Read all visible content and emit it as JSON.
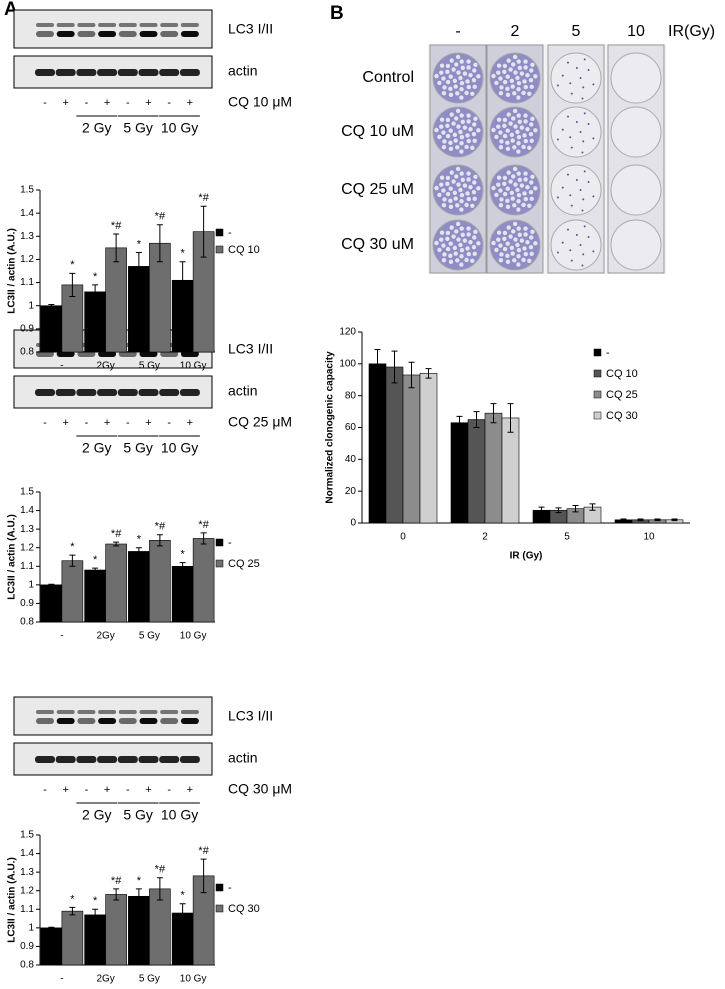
{
  "panel_labels": [
    "A",
    "B"
  ],
  "blots": [
    {
      "bands": [
        "LC3 I/II",
        "actin"
      ],
      "treatment": "CQ 10 μM",
      "lanes": [
        "-",
        "+",
        "-",
        "+",
        "-",
        "+",
        "-",
        "+"
      ],
      "groups": [
        "2 Gy",
        "5 Gy",
        "10 Gy"
      ]
    },
    {
      "bands": [
        "LC3 I/II",
        "actin"
      ],
      "treatment": "CQ 25 μM",
      "lanes": [
        "-",
        "+",
        "-",
        "+",
        "-",
        "+",
        "-",
        "+"
      ],
      "groups": [
        "2 Gy",
        "5 Gy",
        "10 Gy"
      ]
    },
    {
      "bands": [
        "LC3 I/II",
        "actin"
      ],
      "treatment": "CQ 30 μM",
      "lanes": [
        "-",
        "+",
        "-",
        "+",
        "-",
        "+",
        "-",
        "+"
      ],
      "groups": [
        "2 Gy",
        "5 Gy",
        "10 Gy"
      ]
    }
  ],
  "plates": {
    "columns": [
      "-",
      "2",
      "5",
      "10"
    ],
    "column_axis": "IR(Gy)",
    "rows": [
      "Control",
      "CQ 10 uM",
      "CQ 25 uM",
      "CQ 30 uM"
    ]
  },
  "chart_data": [
    {
      "type": "bar",
      "y_label": "LC3II / actin (A.U.)",
      "categories": [
        "-",
        "2Gy",
        "5 Gy",
        "10 Gy"
      ],
      "ylim": [
        0.8,
        1.5
      ],
      "yticks": [
        0.8,
        0.9,
        1,
        1.1,
        1.2,
        1.3,
        1.4,
        1.5
      ],
      "series": [
        {
          "name": "-",
          "color": "#000000",
          "values": [
            1,
            1.06,
            1.17,
            1.11
          ],
          "errors": [
            0.005,
            0.03,
            0.06,
            0.08
          ],
          "annotations": [
            null,
            "*",
            "*",
            "*"
          ]
        },
        {
          "name": "CQ 10",
          "color": "#6e6e6e",
          "values": [
            1.09,
            1.25,
            1.27,
            1.32
          ],
          "errors": [
            0.05,
            0.06,
            0.08,
            0.11
          ],
          "annotations": [
            "*",
            "*#",
            "*#",
            "*#"
          ]
        }
      ]
    },
    {
      "type": "bar",
      "y_label": "LC3II / actin (A.U.)",
      "categories": [
        "-",
        "2Gy",
        "5 Gy",
        "10 Gy"
      ],
      "ylim": [
        0.8,
        1.5
      ],
      "yticks": [
        0.8,
        0.9,
        1,
        1.1,
        1.2,
        1.3,
        1.4,
        1.5
      ],
      "series": [
        {
          "name": "-",
          "color": "#000000",
          "values": [
            1,
            1.08,
            1.18,
            1.1
          ],
          "errors": [
            0.003,
            0.01,
            0.02,
            0.02
          ],
          "annotations": [
            null,
            "*",
            "*",
            "*"
          ]
        },
        {
          "name": "CQ 25",
          "color": "#6e6e6e",
          "values": [
            1.13,
            1.22,
            1.24,
            1.25
          ],
          "errors": [
            0.03,
            0.01,
            0.03,
            0.03
          ],
          "annotations": [
            "*",
            "*#",
            "*#",
            "*#"
          ]
        }
      ]
    },
    {
      "type": "bar",
      "y_label": "LC3II / actin (A.U.)",
      "categories": [
        "-",
        "2Gy",
        "5 Gy",
        "10 Gy"
      ],
      "ylim": [
        0.8,
        1.5
      ],
      "yticks": [
        0.8,
        0.9,
        1,
        1.1,
        1.2,
        1.3,
        1.4,
        1.5
      ],
      "series": [
        {
          "name": "-",
          "color": "#000000",
          "values": [
            1,
            1.07,
            1.17,
            1.08
          ],
          "errors": [
            0.003,
            0.03,
            0.04,
            0.05
          ],
          "annotations": [
            null,
            "*",
            "*",
            "*"
          ]
        },
        {
          "name": "CQ 30",
          "color": "#6e6e6e",
          "values": [
            1.09,
            1.18,
            1.21,
            1.28
          ],
          "errors": [
            0.02,
            0.03,
            0.06,
            0.09
          ],
          "annotations": [
            "*",
            "*#",
            "*#",
            "*#"
          ]
        }
      ]
    },
    {
      "type": "bar",
      "y_label": "Normalized clonogenic capacity",
      "x_label": "IR (Gy)",
      "categories": [
        "0",
        "2",
        "5",
        "10"
      ],
      "ylim": [
        0,
        120
      ],
      "yticks": [
        0,
        20,
        40,
        60,
        80,
        100,
        120
      ],
      "series": [
        {
          "name": "-",
          "color": "#000000",
          "values": [
            100,
            63,
            8,
            2
          ],
          "errors": [
            9,
            4,
            2,
            0.5
          ]
        },
        {
          "name": "CQ 10",
          "color": "#555555",
          "values": [
            98,
            65,
            8,
            2
          ],
          "errors": [
            10,
            5,
            1.5,
            0.5
          ]
        },
        {
          "name": "CQ 25",
          "color": "#8c8c8c",
          "values": [
            93,
            69,
            9,
            2
          ],
          "errors": [
            8,
            6,
            2,
            0.5
          ]
        },
        {
          "name": "CQ 30",
          "color": "#cfcfcf",
          "values": [
            94,
            66,
            10,
            2
          ],
          "errors": [
            3,
            9,
            2,
            0.5
          ]
        }
      ]
    }
  ]
}
